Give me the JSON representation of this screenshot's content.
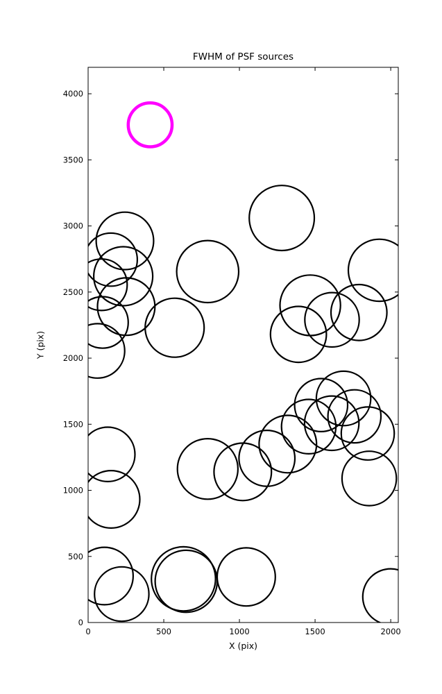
{
  "figure": {
    "title": "FWHM of PSF sources",
    "xlabel": "X (pix)",
    "ylabel": "Y (pix)"
  },
  "chart_data": {
    "type": "scatter",
    "title": "FWHM of PSF sources",
    "xlabel": "X (pix)",
    "ylabel": "Y (pix)",
    "xlim": [
      0,
      2050
    ],
    "ylim": [
      0,
      4200
    ],
    "x_ticks": [
      0,
      500,
      1000,
      1500,
      2000
    ],
    "y_ticks": [
      0,
      500,
      1000,
      1500,
      2000,
      2500,
      3000,
      3500,
      4000
    ],
    "grid": false,
    "legend": "none",
    "marker": "circle-outline",
    "colors": {
      "default": "#000000",
      "highlight": "#ff00ff",
      "axes": "#000000"
    },
    "note": "Each circle marks a PSF source position; radius reflects FWHM. One highlighted source in magenta.",
    "circles": [
      {
        "x": 410,
        "y": 3765,
        "r": 145,
        "color": "#ff00ff",
        "lw": 4.5
      },
      {
        "x": 243,
        "y": 2887,
        "r": 190
      },
      {
        "x": 150,
        "y": 2745,
        "r": 175
      },
      {
        "x": 232,
        "y": 2620,
        "r": 195
      },
      {
        "x": 88,
        "y": 2555,
        "r": 170
      },
      {
        "x": 252,
        "y": 2390,
        "r": 190
      },
      {
        "x": 95,
        "y": 2270,
        "r": 170
      },
      {
        "x": 572,
        "y": 2230,
        "r": 195
      },
      {
        "x": 790,
        "y": 2655,
        "r": 205
      },
      {
        "x": 1280,
        "y": 3060,
        "r": 215
      },
      {
        "x": 1925,
        "y": 2665,
        "r": 205
      },
      {
        "x": 1468,
        "y": 2400,
        "r": 200
      },
      {
        "x": 1612,
        "y": 2290,
        "r": 180
      },
      {
        "x": 1390,
        "y": 2180,
        "r": 185
      },
      {
        "x": 1790,
        "y": 2345,
        "r": 185
      },
      {
        "x": 62,
        "y": 2055,
        "r": 180
      },
      {
        "x": 1540,
        "y": 1645,
        "r": 175
      },
      {
        "x": 1688,
        "y": 1695,
        "r": 180
      },
      {
        "x": 1760,
        "y": 1560,
        "r": 175
      },
      {
        "x": 1610,
        "y": 1508,
        "r": 180
      },
      {
        "x": 1458,
        "y": 1482,
        "r": 180
      },
      {
        "x": 1848,
        "y": 1430,
        "r": 175
      },
      {
        "x": 1320,
        "y": 1350,
        "r": 190
      },
      {
        "x": 1182,
        "y": 1242,
        "r": 185
      },
      {
        "x": 1022,
        "y": 1140,
        "r": 190
      },
      {
        "x": 790,
        "y": 1162,
        "r": 200
      },
      {
        "x": 130,
        "y": 1272,
        "r": 180
      },
      {
        "x": 152,
        "y": 932,
        "r": 190
      },
      {
        "x": 1858,
        "y": 1090,
        "r": 180
      },
      {
        "x": 108,
        "y": 352,
        "r": 190
      },
      {
        "x": 222,
        "y": 215,
        "r": 180
      },
      {
        "x": 630,
        "y": 330,
        "r": 212
      },
      {
        "x": 648,
        "y": 312,
        "r": 205
      },
      {
        "x": 1045,
        "y": 345,
        "r": 192
      },
      {
        "x": 2000,
        "y": 195,
        "r": 185
      }
    ]
  }
}
